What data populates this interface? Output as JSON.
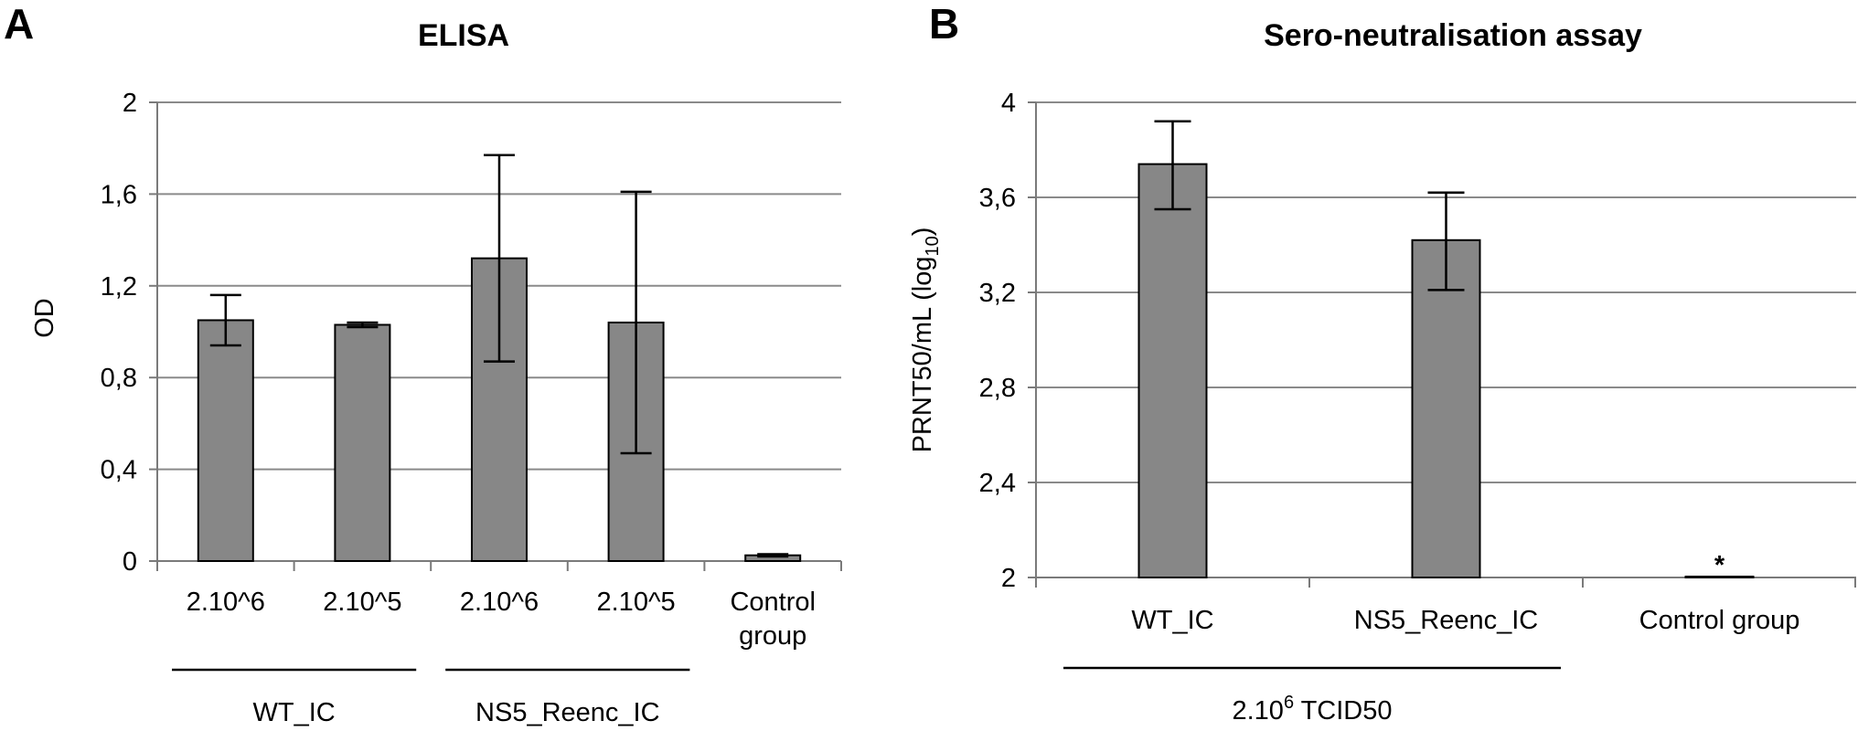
{
  "panels": [
    {
      "letter": "A"
    },
    {
      "letter": "B"
    }
  ],
  "chart_data": [
    {
      "type": "bar",
      "title": "ELISA",
      "ylabel": "OD",
      "xlabel": "",
      "ylim": [
        0,
        2
      ],
      "yticks": [
        "0",
        "0,4",
        "0,8",
        "1,2",
        "1,6",
        "2"
      ],
      "categories": [
        "2.10^6",
        "2.10^5",
        "2.10^6",
        "2.10^5",
        "Control group"
      ],
      "category_lines": [
        [
          "2.10^6"
        ],
        [
          "2.10^5"
        ],
        [
          "2.10^6"
        ],
        [
          "2.10^5"
        ],
        [
          "Control",
          "group"
        ]
      ],
      "values": [
        1.05,
        1.03,
        1.32,
        1.04,
        0.025
      ],
      "errors": [
        [
          0.94,
          1.16
        ],
        [
          1.02,
          1.04
        ],
        [
          0.87,
          1.77
        ],
        [
          0.47,
          1.61
        ],
        [
          0.02,
          0.03
        ]
      ],
      "groups": [
        {
          "label": "WT_IC",
          "categories": [
            0,
            1
          ]
        },
        {
          "label": "NS5_Reenc_IC",
          "categories": [
            2,
            3
          ]
        }
      ],
      "grid": true,
      "bar_color": "#878787"
    },
    {
      "type": "bar",
      "title": "Sero-neutralisation assay",
      "ylabel": {
        "main": "PRNT50/mL  (log",
        "sub": "10",
        "end": ")"
      },
      "xlabel": "",
      "ylim": [
        2,
        4
      ],
      "yticks": [
        "2",
        "2,4",
        "2,8",
        "3,2",
        "3,6",
        "4"
      ],
      "categories": [
        "WT_IC",
        "NS5_Reenc_IC",
        "Control group"
      ],
      "values": [
        3.74,
        3.42,
        2.0
      ],
      "errors": [
        [
          3.55,
          3.92
        ],
        [
          3.21,
          3.62
        ],
        [
          2.0,
          2.0
        ]
      ],
      "annotations": [
        {
          "category": 2,
          "text": "*"
        }
      ],
      "groups": [
        {
          "label": {
            "main": "2.10",
            "sup": "6",
            "end": " TCID50"
          },
          "categories": [
            0,
            1
          ]
        }
      ],
      "grid": true,
      "bar_color": "#878787"
    }
  ]
}
